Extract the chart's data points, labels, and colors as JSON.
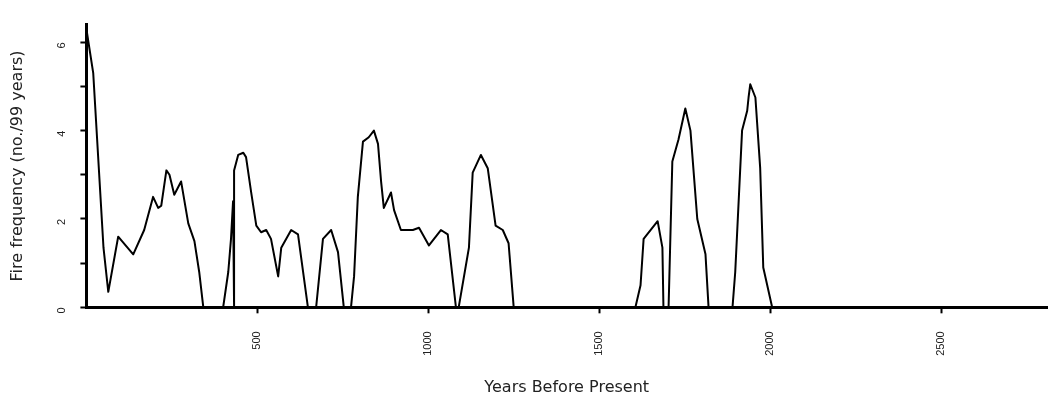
{
  "chart_data": {
    "type": "line",
    "xlabel": "Years Before Present",
    "ylabel": "Fire frequency (no./99 years)",
    "xlim": [
      0,
      2810
    ],
    "ylim": [
      0,
      6.4
    ],
    "xticks": [
      500,
      1000,
      1500,
      2000,
      2500
    ],
    "yticks": [
      0,
      {
        "value": 1,
        "label": null
      },
      2,
      {
        "value": 3,
        "label": null
      },
      4,
      {
        "value": 5,
        "label": null
      },
      6
    ],
    "grid": false,
    "legend": false,
    "marker": "none",
    "line_style": "solid",
    "series": [
      {
        "color": "#000000",
        "x": [
          0,
          20,
          50,
          64,
          93,
          137,
          169,
          195,
          210,
          219,
          234,
          243,
          257,
          277,
          298,
          316,
          330,
          342,
          400,
          415,
          423,
          429,
          432,
          432,
          444,
          459,
          467,
          482,
          497,
          511,
          526,
          540,
          561,
          570,
          599,
          619,
          648,
          672,
          692,
          716,
          736,
          753,
          774,
          783,
          794,
          809,
          826,
          841,
          853,
          862,
          870,
          891,
          900,
          920,
          955,
          973,
          1002,
          1037,
          1057,
          1081,
          1089,
          1119,
          1130,
          1154,
          1174,
          1197,
          1218,
          1235,
          1250,
          1606,
          1621,
          1630,
          1671,
          1685,
          1688,
          1703,
          1714,
          1732,
          1752,
          1767,
          1787,
          1811,
          1820,
          1890,
          1898,
          1918,
          1933,
          1937,
          1942,
          1957,
          1971,
          1980,
          2006,
          2810
        ],
        "values": [
          6.3,
          5.3,
          1.35,
          0.35,
          1.6,
          1.2,
          1.75,
          2.5,
          2.25,
          2.3,
          3.1,
          3.0,
          2.55,
          2.85,
          1.9,
          1.5,
          0.8,
          0,
          0,
          0.8,
          1.55,
          2.4,
          0,
          3.1,
          3.45,
          3.5,
          3.4,
          2.6,
          1.85,
          1.7,
          1.75,
          1.55,
          0.7,
          1.35,
          1.75,
          1.65,
          0,
          0,
          1.55,
          1.75,
          1.25,
          0,
          0,
          0.7,
          2.5,
          3.75,
          3.85,
          4.0,
          3.7,
          2.85,
          2.25,
          2.6,
          2.2,
          1.75,
          1.75,
          1.8,
          1.4,
          1.75,
          1.65,
          0,
          0,
          1.35,
          3.05,
          3.45,
          3.15,
          1.85,
          1.75,
          1.45,
          0,
          0,
          0.5,
          1.55,
          1.95,
          1.35,
          0,
          0,
          3.3,
          3.8,
          4.5,
          4.0,
          2.0,
          1.2,
          0,
          0,
          0.8,
          4.0,
          4.45,
          4.75,
          5.05,
          4.75,
          3.15,
          0.9,
          0,
          0
        ]
      }
    ]
  }
}
